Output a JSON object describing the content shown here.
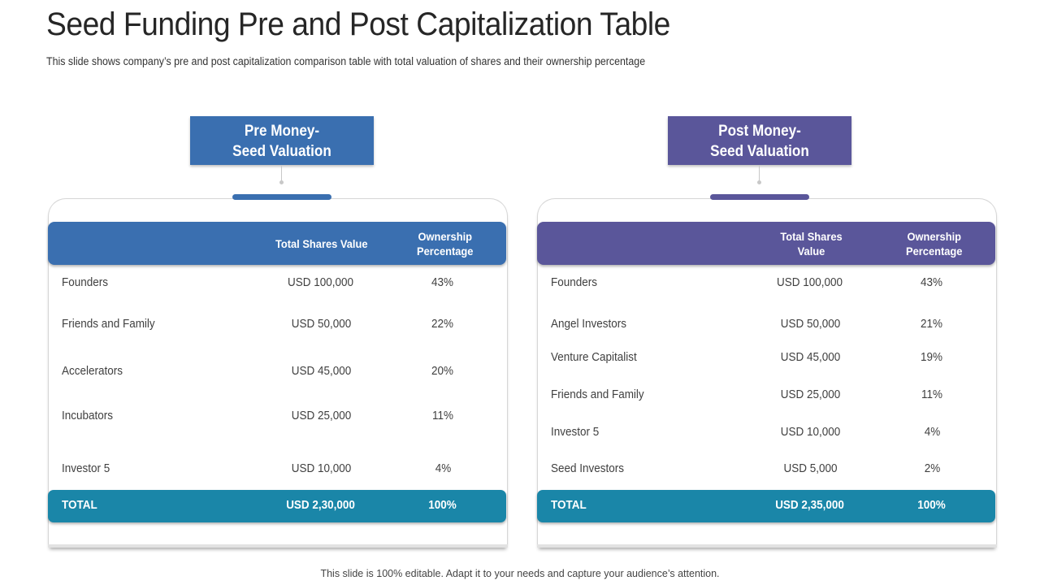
{
  "slide": {
    "title": "Seed Funding Pre and Post Capitalization Table",
    "subtitle": "This slide shows company’s pre and post capitalization comparison table with total valuation of shares and their ownership percentage",
    "footer": "This slide is 100% editable. Adapt it to your needs and capture your audience’s attention."
  },
  "pre": {
    "header_line1": "Pre Money-",
    "header_line2": "Seed Valuation",
    "col1_label": "Total Shares Value",
    "col2_line1": "Ownership",
    "col2_line2": "Percentage",
    "rows": [
      {
        "name": "Founders",
        "value": "USD 100,000",
        "pct": "43%"
      },
      {
        "name": "Friends and Family",
        "value": "USD 50,000",
        "pct": "22%"
      },
      {
        "name": "Accelerators",
        "value": "USD 45,000",
        "pct": "20%"
      },
      {
        "name": "Incubators",
        "value": "USD 25,000",
        "pct": "11%"
      },
      {
        "name": "Investor 5",
        "value": "USD 10,000",
        "pct": "4%"
      }
    ],
    "total": {
      "name": "TOTAL",
      "value": "USD 2,30,000",
      "pct": "100%"
    }
  },
  "post": {
    "header_line1": "Post Money-",
    "header_line2": "Seed Valuation",
    "col1_line1": "Total Shares",
    "col1_line2": "Value",
    "col2_line1": "Ownership",
    "col2_line2": "Percentage",
    "rows": [
      {
        "name": "Founders",
        "value": "USD 100,000",
        "pct": "43%"
      },
      {
        "name": "Angel Investors",
        "value": "USD 50,000",
        "pct": "21%"
      },
      {
        "name": "Venture Capitalist",
        "value": "USD 45,000",
        "pct": "19%"
      },
      {
        "name": "Friends and Family",
        "value": "USD 25,000",
        "pct": "11%"
      },
      {
        "name": "Investor 5",
        "value": "USD 10,000",
        "pct": "4%"
      },
      {
        "name": "Seed Investors",
        "value": "USD 5,000",
        "pct": "2%"
      }
    ],
    "total": {
      "name": "TOTAL",
      "value": "USD 2,35,000",
      "pct": "100%"
    }
  },
  "colors": {
    "pre_accent": "#3a6fb0",
    "post_accent": "#5a569a",
    "total_bar": "#1a86a8"
  }
}
